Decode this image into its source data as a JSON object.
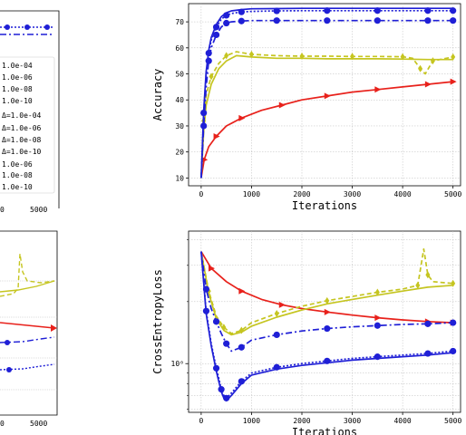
{
  "chart_data": [
    {
      "id": "legend-panel",
      "type": "line",
      "partial": true,
      "x_tick_labels": [
        "0",
        "5000"
      ],
      "legend_entries": [
        "1.0e-04",
        "1.0e-06",
        "1.0e-08",
        "1.0e-10",
        "Δ=1.0e-04",
        "Δ=1.0e-06",
        "Δ=1.0e-08",
        "Δ=1.0e-10",
        "1.0e-06",
        "1.0e-08",
        "1.0e-10"
      ]
    },
    {
      "id": "accuracy",
      "type": "line",
      "xlabel": "Iterations",
      "ylabel": "Accuracy",
      "xlim": [
        -250,
        5150
      ],
      "ylim": [
        7,
        77
      ],
      "x_ticks": [
        0,
        1000,
        2000,
        3000,
        4000,
        5000
      ],
      "y_ticks": [
        10,
        20,
        30,
        40,
        50,
        60,
        70
      ],
      "grid": true,
      "series": [
        {
          "color": "#e8211b",
          "dash": "",
          "marker": "tri",
          "x": [
            0,
            60,
            150,
            300,
            500,
            800,
            1200,
            1600,
            2000,
            2500,
            3000,
            3500,
            4000,
            4500,
            5000
          ],
          "y": [
            10,
            17,
            22,
            26,
            30,
            33,
            36,
            38,
            40,
            41.5,
            43,
            44,
            45,
            46,
            47
          ]
        },
        {
          "color": "#c5c520",
          "dash": "",
          "marker": "none",
          "x": [
            0,
            50,
            100,
            200,
            350,
            500,
            700,
            1000,
            1500,
            2000,
            2500,
            3000,
            3500,
            4000,
            4500,
            5000
          ],
          "y": [
            10,
            28,
            38,
            46,
            52,
            55,
            57,
            56.5,
            56,
            56,
            55.8,
            55.8,
            55.8,
            55.7,
            55.5,
            55.5
          ]
        },
        {
          "color": "#c5c520",
          "dash": "5,3",
          "marker": "diamond",
          "x": [
            0,
            50,
            100,
            200,
            350,
            500,
            700,
            1000,
            1500,
            2000,
            2500,
            3000,
            3500,
            4000,
            4200,
            4350,
            4450,
            4600,
            5000
          ],
          "y": [
            10,
            32,
            42,
            49,
            54,
            57,
            58.5,
            57.5,
            57,
            56.8,
            56.8,
            56.7,
            56.7,
            56.6,
            56,
            52,
            50,
            55,
            56.5
          ]
        },
        {
          "color": "#1f1fd6",
          "dash": "7,3,2,3",
          "marker": "circle",
          "x": [
            0,
            50,
            100,
            150,
            200,
            300,
            400,
            500,
            600,
            800,
            1000,
            1500,
            2000,
            2500,
            3000,
            3500,
            4000,
            4500,
            5000
          ],
          "y": [
            10,
            30,
            45,
            55,
            60,
            65,
            68,
            69.5,
            70,
            70.3,
            70.5,
            70.5,
            70.5,
            70.5,
            70.5,
            70.5,
            70.5,
            70.5,
            70.5
          ]
        },
        {
          "color": "#1f1fd6",
          "dash": "2,2",
          "marker": "circle",
          "x": [
            0,
            50,
            100,
            150,
            200,
            300,
            400,
            500,
            600,
            800,
            1000,
            1500,
            2000,
            2500,
            3000,
            3500,
            4000,
            4500,
            5000
          ],
          "y": [
            10,
            35,
            50,
            58,
            63,
            68,
            71,
            72.5,
            73.2,
            73.8,
            74,
            74.2,
            74.3,
            74.3,
            74.3,
            74.3,
            74.3,
            74.3,
            74.3
          ]
        },
        {
          "color": "#1f1fd6",
          "dash": "",
          "marker": "none",
          "x": [
            0,
            50,
            100,
            150,
            200,
            300,
            400,
            500,
            600,
            800,
            1000,
            1500,
            2000,
            2500,
            3000,
            3500,
            4000,
            4500,
            5000
          ],
          "y": [
            10,
            36,
            51,
            59,
            64,
            69,
            72,
            73.5,
            74.2,
            74.7,
            75,
            75.1,
            75.2,
            75.2,
            75.2,
            75.2,
            75.2,
            75.2,
            75.2
          ]
        }
      ]
    },
    {
      "id": "cross-entropy",
      "type": "line",
      "xlabel": "Iterations",
      "ylabel": "CrossEntropyLoss",
      "yscale": "log",
      "xlim": [
        -250,
        5150
      ],
      "ylim": [
        0.58,
        4.4
      ],
      "x_ticks": [
        0,
        1000,
        2000,
        3000,
        4000,
        5000
      ],
      "y_tick_labels": [
        "10⁰"
      ],
      "grid": true,
      "series": [
        {
          "color": "#e8211b",
          "dash": "",
          "marker": "tri",
          "x": [
            0,
            200,
            500,
            800,
            1200,
            1600,
            2000,
            2500,
            3000,
            3500,
            4000,
            4500,
            5000
          ],
          "y": [
            3.5,
            2.9,
            2.5,
            2.25,
            2.05,
            1.93,
            1.85,
            1.78,
            1.72,
            1.67,
            1.63,
            1.6,
            1.58
          ]
        },
        {
          "color": "#c5c520",
          "dash": "",
          "marker": "none",
          "x": [
            0,
            150,
            300,
            450,
            600,
            800,
            1000,
            1500,
            2000,
            2500,
            3000,
            3500,
            4000,
            4500,
            5000
          ],
          "y": [
            3.5,
            2.2,
            1.65,
            1.45,
            1.38,
            1.42,
            1.52,
            1.68,
            1.82,
            1.95,
            2.05,
            2.15,
            2.25,
            2.35,
            2.4
          ]
        },
        {
          "color": "#c5c520",
          "dash": "5,3",
          "marker": "diamond",
          "x": [
            0,
            150,
            300,
            450,
            600,
            800,
            1000,
            1500,
            2000,
            2500,
            3000,
            3500,
            4000,
            4300,
            4420,
            4500,
            4600,
            5000
          ],
          "y": [
            3.5,
            2.25,
            1.7,
            1.5,
            1.4,
            1.45,
            1.58,
            1.75,
            1.9,
            2.02,
            2.12,
            2.22,
            2.3,
            2.4,
            3.6,
            2.7,
            2.5,
            2.45
          ]
        },
        {
          "color": "#1f1fd6",
          "dash": "7,3,2,3",
          "marker": "circle",
          "x": [
            0,
            100,
            200,
            300,
            400,
            500,
            600,
            800,
            1000,
            1500,
            2000,
            2500,
            3000,
            3500,
            4000,
            4500,
            5000
          ],
          "y": [
            3.5,
            2.3,
            1.85,
            1.6,
            1.4,
            1.25,
            1.15,
            1.2,
            1.3,
            1.38,
            1.44,
            1.48,
            1.51,
            1.53,
            1.55,
            1.56,
            1.58
          ]
        },
        {
          "color": "#1f1fd6",
          "dash": "2,2",
          "marker": "circle",
          "x": [
            0,
            100,
            200,
            300,
            350,
            400,
            450,
            500,
            600,
            800,
            1000,
            1500,
            2000,
            2500,
            3000,
            3500,
            4000,
            4500,
            5000
          ],
          "y": [
            3.5,
            1.8,
            1.25,
            0.95,
            0.85,
            0.75,
            0.7,
            0.68,
            0.72,
            0.82,
            0.9,
            0.96,
            1.0,
            1.03,
            1.06,
            1.08,
            1.1,
            1.12,
            1.15
          ]
        },
        {
          "color": "#1f1fd6",
          "dash": "",
          "marker": "none",
          "x": [
            0,
            100,
            200,
            300,
            350,
            400,
            450,
            500,
            600,
            800,
            1000,
            1500,
            2000,
            2500,
            3000,
            3500,
            4000,
            4500,
            5000
          ],
          "y": [
            3.5,
            1.75,
            1.22,
            0.92,
            0.82,
            0.73,
            0.68,
            0.66,
            0.7,
            0.8,
            0.88,
            0.94,
            0.98,
            1.01,
            1.04,
            1.06,
            1.08,
            1.1,
            1.13
          ]
        }
      ]
    },
    {
      "id": "bottom-left-partial",
      "type": "line",
      "partial": true,
      "x_tick_labels": [
        "0",
        "5000"
      ]
    }
  ]
}
